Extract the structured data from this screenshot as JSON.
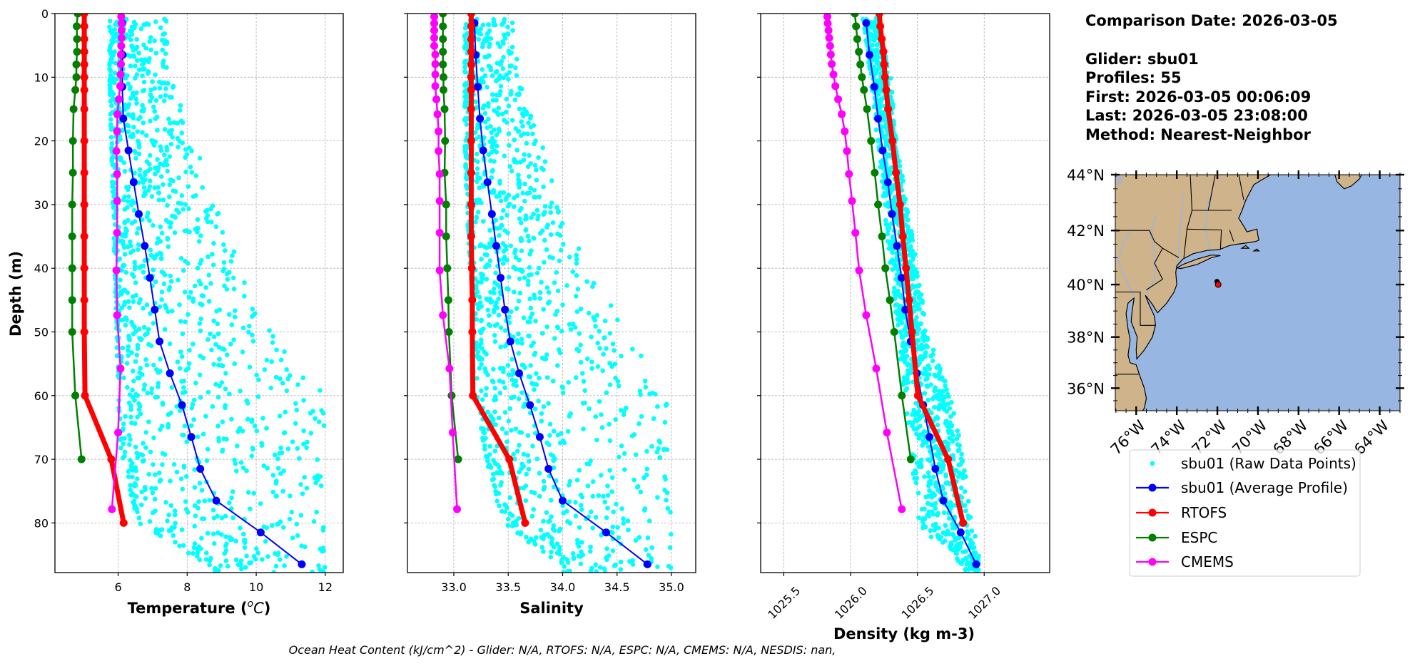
{
  "info": {
    "comparison_date": "Comparison Date: 2026-03-05",
    "glider": "Glider: sbu01",
    "profiles": "Profiles: 55",
    "first": "First: 2026-03-05 00:06:09",
    "last": "Last: 2026-03-05 23:08:00",
    "method": "Method: Nearest-Neighbor"
  },
  "footer": {
    "ohc": "Ocean Heat Content (kJ/cm^2) - Glider: N/A,  RTOFS: N/A,  ESPC: N/A,  CMEMS: N/A,  NESDIS: nan,"
  },
  "colors": {
    "raw": "#00ffff",
    "glider": "#0000ff",
    "rtofs": "#ff0000",
    "espc": "#008000",
    "cmems": "#ff00ff",
    "land": "#cfb38b",
    "ocean": "#97b6e1",
    "grid": "#b0b0b0"
  },
  "legend": [
    {
      "label": "sbu01 (Raw Data Points)",
      "key": "raw",
      "style": "dot"
    },
    {
      "label": "sbu01 (Average Profile)",
      "key": "glider",
      "style": "line-marker"
    },
    {
      "label": "RTOFS",
      "key": "rtofs",
      "style": "line-marker"
    },
    {
      "label": "ESPC",
      "key": "espc",
      "style": "line-marker"
    },
    {
      "label": "CMEMS",
      "key": "cmems",
      "style": "line-marker"
    }
  ],
  "depth_axis": {
    "label": "Depth (m)",
    "ylim": [
      0,
      87.8
    ],
    "inverted": true,
    "ticks": [
      0,
      10,
      20,
      30,
      40,
      50,
      60,
      70,
      80
    ],
    "tick_labels": [
      "0",
      "10",
      "20",
      "30",
      "40",
      "50",
      "60",
      "70",
      "80"
    ]
  },
  "depths": {
    "glider": [
      1.5,
      6.5,
      11.5,
      16.5,
      21.5,
      26.5,
      31.5,
      36.5,
      41.5,
      46.5,
      51.5,
      56.5,
      61.5,
      66.5,
      71.5,
      76.5,
      81.5,
      86.5
    ],
    "rtofs": [
      0,
      2,
      4,
      6,
      8,
      10,
      12,
      15,
      20,
      25,
      30,
      35,
      40,
      45,
      50,
      60,
      70,
      80
    ],
    "espc": [
      0,
      2,
      4,
      6,
      8,
      10,
      12,
      15,
      20,
      25,
      30,
      35,
      40,
      45,
      50,
      60,
      70
    ],
    "cmems": [
      0.49,
      1.54,
      2.65,
      3.82,
      5.08,
      6.44,
      7.93,
      9.57,
      11.4,
      13.47,
      15.81,
      18.5,
      21.6,
      25.21,
      29.44,
      34.43,
      40.34,
      47.37,
      55.76,
      65.81,
      77.85
    ]
  },
  "chart_data": [
    {
      "type": "line",
      "xlabel_parts": [
        "Temperature (",
        "o",
        "C",
        ")"
      ],
      "ylabel": "Depth (m)",
      "xlim": [
        4.17,
        12.52
      ],
      "xticks": [
        6,
        8,
        10,
        12
      ],
      "xtick_labels": [
        "6",
        "8",
        "10",
        "12"
      ],
      "tick_rotation": 0,
      "grid": true,
      "series": [
        {
          "name": "sbu01 (Average Profile)",
          "key": "glider",
          "values": [
            6.12,
            6.13,
            6.12,
            6.15,
            6.3,
            6.45,
            6.6,
            6.77,
            6.92,
            7.06,
            7.2,
            7.5,
            7.85,
            8.12,
            8.38,
            8.84,
            10.13,
            11.32
          ]
        },
        {
          "name": "RTOFS",
          "key": "rtofs",
          "values": [
            5.02,
            5.02,
            5.02,
            5.02,
            5.02,
            5.02,
            5.02,
            5.02,
            5.02,
            5.02,
            5.02,
            5.02,
            5.02,
            5.02,
            5.02,
            5.04,
            5.8,
            6.16
          ]
        },
        {
          "name": "ESPC",
          "key": "espc",
          "values": [
            4.83,
            4.8,
            4.81,
            4.81,
            4.79,
            4.79,
            4.76,
            4.71,
            4.69,
            4.69,
            4.67,
            4.67,
            4.67,
            4.67,
            4.67,
            4.76,
            4.94
          ]
        },
        {
          "name": "CMEMS",
          "key": "cmems",
          "values": [
            6.09,
            6.1,
            6.1,
            6.1,
            6.09,
            6.08,
            6.08,
            6.07,
            6.06,
            6.02,
            5.98,
            5.97,
            5.95,
            5.97,
            5.97,
            5.97,
            5.95,
            5.97,
            6.07,
            6.0,
            5.82
          ]
        }
      ],
      "raw_envelope": [
        [
          1,
          5.75,
          7.4
        ],
        [
          10,
          5.75,
          7.5
        ],
        [
          20,
          5.8,
          8.2
        ],
        [
          30,
          5.85,
          8.9
        ],
        [
          40,
          5.9,
          9.6
        ],
        [
          50,
          5.95,
          10.5
        ],
        [
          60,
          6.0,
          12.0
        ],
        [
          70,
          6.1,
          12.0
        ],
        [
          80,
          6.6,
          12.0
        ],
        [
          87,
          8.8,
          12.0
        ]
      ]
    },
    {
      "type": "line",
      "xlabel_parts": [
        "Salinity"
      ],
      "xlim": [
        32.574,
        35.223
      ],
      "xticks": [
        33.0,
        33.5,
        34.0,
        34.5,
        35.0
      ],
      "xtick_labels": [
        "33.0",
        "33.5",
        "34.0",
        "34.5",
        "35.0"
      ],
      "tick_rotation": 0,
      "grid": true,
      "series": [
        {
          "name": "sbu01 (Average Profile)",
          "key": "glider",
          "values": [
            33.19,
            33.2,
            33.22,
            33.24,
            33.27,
            33.31,
            33.35,
            33.39,
            33.43,
            33.47,
            33.52,
            33.6,
            33.7,
            33.79,
            33.87,
            34.0,
            34.4,
            34.78
          ]
        },
        {
          "name": "RTOFS",
          "key": "rtofs",
          "values": [
            33.16,
            33.16,
            33.16,
            33.16,
            33.16,
            33.16,
            33.16,
            33.16,
            33.16,
            33.16,
            33.16,
            33.16,
            33.165,
            33.17,
            33.17,
            33.175,
            33.51,
            33.655
          ]
        },
        {
          "name": "ESPC",
          "key": "espc",
          "values": [
            32.9,
            32.9,
            32.9,
            32.9,
            32.9,
            32.905,
            32.905,
            32.915,
            32.92,
            32.915,
            32.93,
            32.93,
            32.94,
            32.95,
            32.955,
            32.98,
            33.04
          ]
        },
        {
          "name": "CMEMS",
          "key": "cmems",
          "values": [
            32.82,
            32.82,
            32.82,
            32.82,
            32.82,
            32.83,
            32.83,
            32.83,
            32.83,
            32.84,
            32.85,
            32.86,
            32.86,
            32.87,
            32.87,
            32.87,
            32.87,
            32.9,
            32.96,
            32.99,
            33.03
          ]
        }
      ],
      "raw_envelope": [
        [
          1,
          33.1,
          33.55
        ],
        [
          10,
          33.1,
          33.6
        ],
        [
          20,
          33.1,
          33.8
        ],
        [
          30,
          33.12,
          34.0
        ],
        [
          40,
          33.15,
          34.25
        ],
        [
          50,
          33.2,
          34.6
        ],
        [
          60,
          33.2,
          34.95
        ],
        [
          70,
          33.3,
          35.0
        ],
        [
          80,
          33.45,
          35.0
        ],
        [
          87,
          34.0,
          35.0
        ]
      ]
    },
    {
      "type": "line",
      "xlabel_parts": [
        "Density (kg m-3)"
      ],
      "xlim": [
        1025.327,
        1027.49
      ],
      "xticks": [
        1025.5,
        1026.0,
        1026.5,
        1027.0
      ],
      "xtick_labels": [
        "1025.5",
        "1026.0",
        "1026.5",
        "1027.0"
      ],
      "tick_rotation": 45,
      "grid": true,
      "series": [
        {
          "name": "sbu01 (Average Profile)",
          "key": "glider",
          "values": [
            1026.117,
            1026.142,
            1026.178,
            1026.206,
            1026.24,
            1026.279,
            1026.31,
            1026.347,
            1026.381,
            1026.409,
            1026.45,
            1026.496,
            1026.543,
            1026.59,
            1026.635,
            1026.694,
            1026.824,
            1026.94
          ]
        },
        {
          "name": "RTOFS",
          "key": "rtofs",
          "values": [
            1026.215,
            1026.222,
            1026.233,
            1026.246,
            1026.251,
            1026.258,
            1026.267,
            1026.281,
            1026.313,
            1026.34,
            1026.37,
            1026.391,
            1026.415,
            1026.438,
            1026.459,
            1026.504,
            1026.73,
            1026.842
          ]
        },
        {
          "name": "ESPC",
          "key": "espc",
          "values": [
            1026.032,
            1026.041,
            1026.05,
            1026.062,
            1026.073,
            1026.085,
            1026.1,
            1026.123,
            1026.153,
            1026.181,
            1026.206,
            1026.235,
            1026.26,
            1026.294,
            1026.327,
            1026.384,
            1026.45
          ]
        },
        {
          "name": "CMEMS",
          "key": "cmems",
          "values": [
            1025.826,
            1025.829,
            1025.835,
            1025.84,
            1025.847,
            1025.852,
            1025.859,
            1025.872,
            1025.886,
            1025.907,
            1025.934,
            1025.956,
            1025.973,
            1025.988,
            1026.011,
            1026.036,
            1026.064,
            1026.117,
            1026.192,
            1026.272,
            1026.383
          ]
        }
      ],
      "raw_envelope": [
        [
          1,
          1026.08,
          1026.2
        ],
        [
          10,
          1026.15,
          1026.3
        ],
        [
          20,
          1026.2,
          1026.35
        ],
        [
          30,
          1026.25,
          1026.42
        ],
        [
          40,
          1026.3,
          1026.5
        ],
        [
          50,
          1026.35,
          1026.58
        ],
        [
          60,
          1026.4,
          1026.75
        ],
        [
          70,
          1026.45,
          1026.85
        ],
        [
          80,
          1026.5,
          1026.92
        ],
        [
          87,
          1026.85,
          1026.97
        ]
      ]
    }
  ],
  "map": {
    "lon_range": [
      -77.03,
      -63.0
    ],
    "lat_range": [
      35.1,
      44.0
    ],
    "projection": "mercator",
    "lat_ticks": [
      36,
      38,
      40,
      42,
      44
    ],
    "lat_tick_labels": [
      "36°N",
      "38°N",
      "40°N",
      "42°N",
      "44°N"
    ],
    "lon_ticks": [
      -76,
      -74,
      -72,
      -70,
      -68,
      -66,
      -64
    ],
    "lon_tick_labels": [
      "76°W",
      "74°W",
      "72°W",
      "70°W",
      "68°W",
      "66°W",
      "64°W"
    ],
    "track": [
      [
        -72.02,
        40.12
      ],
      [
        -71.99,
        40.08
      ]
    ],
    "glider_position": {
      "lon": -71.96,
      "lat": 40.0
    }
  }
}
